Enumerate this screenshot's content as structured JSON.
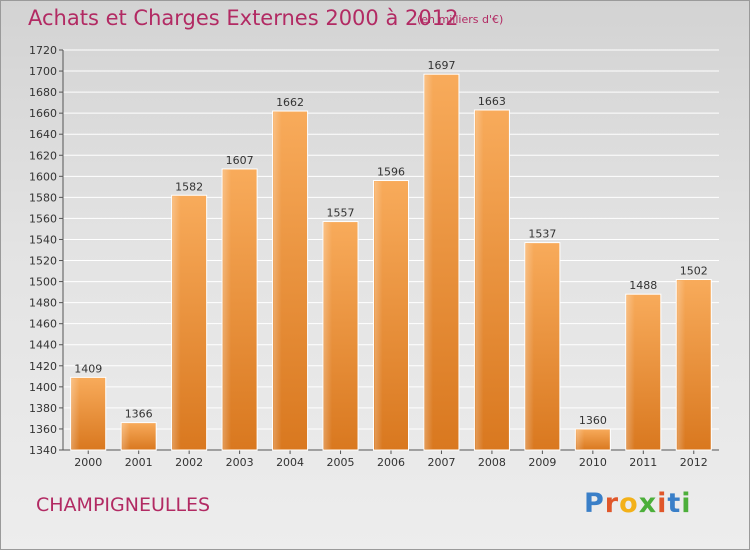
{
  "header": {
    "title": "Achats et Charges Externes 2000 à 2012",
    "subtitle": "(en milliers d'€)"
  },
  "footer": {
    "place": "CHAMPIGNEULLES",
    "logo_letters": [
      "P",
      "r",
      "o",
      "x",
      "i",
      "t",
      "i"
    ]
  },
  "colors": {
    "title": "#b22a63",
    "bar_light": "#f6a655",
    "bar_dark": "#db7a26",
    "logo_blue": "#3a7fc8",
    "logo_orange": "#e0572a",
    "logo_yellow": "#f3b119",
    "logo_green": "#4caf3a"
  },
  "chart_data": {
    "type": "bar",
    "categories": [
      "2000",
      "2001",
      "2002",
      "2003",
      "2004",
      "2005",
      "2006",
      "2007",
      "2008",
      "2009",
      "2010",
      "2011",
      "2012"
    ],
    "values": [
      1409,
      1366,
      1582,
      1607,
      1662,
      1557,
      1596,
      1697,
      1663,
      1537,
      1360,
      1488,
      1502
    ],
    "ylim": [
      1340,
      1720
    ],
    "yticks": [
      1340,
      1360,
      1380,
      1400,
      1420,
      1440,
      1460,
      1480,
      1500,
      1520,
      1540,
      1560,
      1580,
      1600,
      1620,
      1640,
      1660,
      1680,
      1700,
      1720
    ],
    "grid": true,
    "data_labels": true
  }
}
